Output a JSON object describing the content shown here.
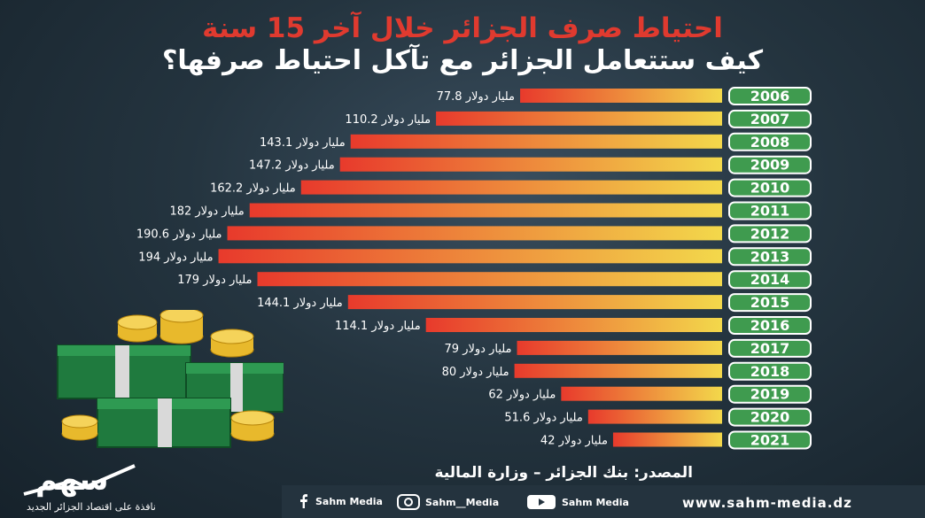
{
  "header": {
    "title": "احتياط صرف الجزائر خلال آخر 15 سنة",
    "subtitle": "كيف ستتعامل الجزائر مع تآكل احتياط صرفها؟"
  },
  "chart_data": {
    "type": "bar",
    "orientation": "horizontal",
    "unit_label": "مليار دولار",
    "categories": [
      "2006",
      "2007",
      "2008",
      "2009",
      "2010",
      "2011",
      "2012",
      "2013",
      "2014",
      "2015",
      "2016",
      "2017",
      "2018",
      "2019",
      "2020",
      "2021"
    ],
    "values": [
      77.8,
      110.2,
      143.1,
      147.2,
      162.2,
      182,
      190.6,
      194,
      179,
      144.1,
      114.1,
      79,
      80,
      62,
      51.6,
      42
    ],
    "value_labels": [
      "77.8",
      "110.2",
      "143.1",
      "147.2",
      "162.2",
      "182",
      "190.6",
      "194",
      "179",
      "144.1",
      "114.1",
      "79",
      "80",
      "62",
      "51.6",
      "42"
    ],
    "colors": {
      "low": "#f0d84a",
      "high": "#e83a2c",
      "year_badge": "#3f9b4f",
      "badge_border": "#ffffff"
    }
  },
  "source": {
    "text": "المصدر: بنك الجزائر – وزارة المالية"
  },
  "footer": {
    "facebook": "Sahm Media",
    "instagram": "Sahm__Media",
    "youtube": "Sahm Media",
    "website": "www.sahm-media.dz"
  },
  "brand": {
    "name": "سهم",
    "tagline": "نافذة على اقتصاد الجزائر الجديد"
  }
}
